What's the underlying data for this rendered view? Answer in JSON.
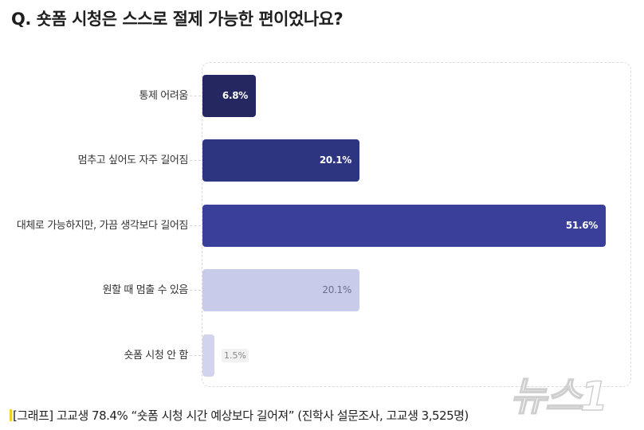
{
  "title": "Q. 숏폼 시청은 스스로 절제 가능한 편이었나요?",
  "chart_data": {
    "type": "bar",
    "orientation": "horizontal",
    "title": "Q. 숏폼 시청은 스스로 절제 가능한 편이었나요?",
    "xlabel": "",
    "ylabel": "",
    "xlim": [
      0,
      55
    ],
    "grid": false,
    "legend": null,
    "categories": [
      "통제 어려움",
      "멈추고 싶어도 자주 길어짐",
      "대체로 가능하지만, 가끔 생각보다 길어짐",
      "원할 때 멈출 수 있음",
      "숏폼 시청 안 함"
    ],
    "values": [
      6.8,
      20.1,
      51.6,
      20.1,
      1.5
    ],
    "value_labels": [
      "6.8%",
      "20.1%",
      "51.6%",
      "20.1%",
      "1.5%"
    ],
    "colors": [
      "#252860",
      "#2e3580",
      "#3a409a",
      "#c8cbea",
      "#d2d4ee"
    ],
    "label_colors": [
      "#ffffff",
      "#ffffff",
      "#ffffff",
      "#6b6f8a",
      "#888888"
    ]
  },
  "caption": "[그래프] 고교생 78.4% “숏폼 시청 시간 예상보다 길어져” (진학사 설문조사, 고교생 3,525명)",
  "watermark": "뉴스1"
}
